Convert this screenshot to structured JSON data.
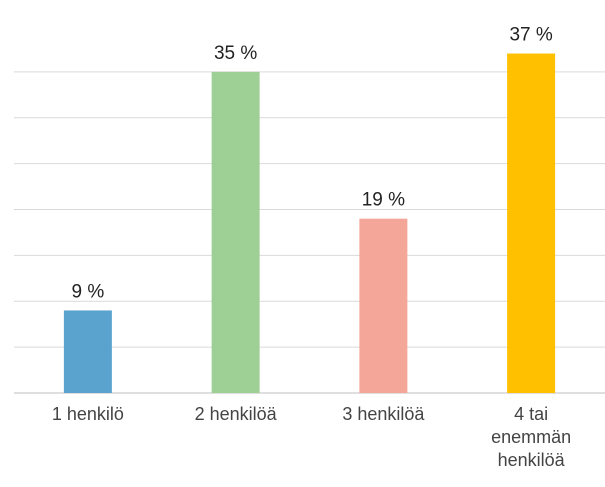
{
  "chart_data": {
    "type": "bar",
    "categories": [
      "1 henkilö",
      "2 henkilöä",
      "3 henkilöä",
      "4 tai enemmän henkilöä"
    ],
    "values": [
      9,
      35,
      19,
      37
    ],
    "value_labels": [
      "9 %",
      "35 %",
      "19 %",
      "37 %"
    ],
    "colors": [
      "#5ba3cf",
      "#9ecf95",
      "#f4a799",
      "#ffc000"
    ],
    "ylim": [
      0,
      40
    ],
    "yticks": [
      0,
      5,
      10,
      15,
      20,
      25,
      30,
      35
    ],
    "grid": true,
    "ytick_labels_visible": false
  }
}
